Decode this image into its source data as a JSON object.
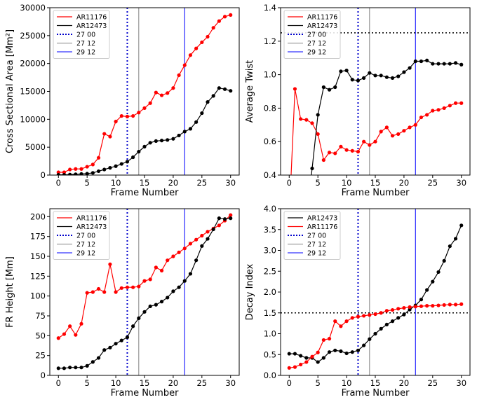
{
  "chart_data": [
    {
      "type": "line",
      "xlabel": "Frame Number",
      "ylabel": "Cross Sectional Area [Mm²]",
      "xlim": [
        -1.5,
        31.5
      ],
      "ylim": [
        0,
        30000
      ],
      "xticks": [
        0,
        5,
        10,
        15,
        20,
        25,
        30
      ],
      "yticks": [
        0,
        5000,
        10000,
        15000,
        20000,
        25000,
        30000
      ],
      "legend": "top-left",
      "vlines": [
        {
          "name": "27 00",
          "x": 12,
          "color": "#0000cc",
          "style": "dotted"
        },
        {
          "name": "27 12",
          "x": 14,
          "color": "#808080",
          "style": "solid"
        },
        {
          "name": "29 12",
          "x": 22,
          "color": "#0000ff",
          "style": "solid"
        }
      ],
      "hlines": [],
      "series": [
        {
          "name": "AR11176",
          "color": "#ff0000",
          "values": [
            500,
            500,
            1000,
            1100,
            1100,
            1500,
            1900,
            3100,
            7400,
            6900,
            9600,
            10600,
            10500,
            10600,
            11200,
            12000,
            12900,
            14800,
            14300,
            14700,
            15600,
            17900,
            19700,
            21500,
            22700,
            23800,
            24800,
            26400,
            27600,
            28400,
            28700
          ]
        },
        {
          "name": "AR12473",
          "color": "#000000",
          "values": [
            50,
            50,
            100,
            150,
            200,
            250,
            400,
            700,
            1000,
            1300,
            1600,
            2000,
            2400,
            3200,
            4200,
            5100,
            5800,
            6100,
            6200,
            6300,
            6500,
            7100,
            7800,
            8300,
            9500,
            11100,
            13100,
            14200,
            15600,
            15400,
            15100
          ]
        }
      ]
    },
    {
      "type": "line",
      "xlabel": "Frame Number",
      "ylabel": "Average Twist",
      "xlim": [
        -1.5,
        31.5
      ],
      "ylim": [
        0.4,
        1.4
      ],
      "xticks": [
        0,
        5,
        10,
        15,
        20,
        25,
        30
      ],
      "yticks": [
        0.4,
        0.6,
        0.8,
        1.0,
        1.2,
        1.4
      ],
      "legend": "top-left",
      "vlines": [
        {
          "name": "27 00",
          "x": 12,
          "color": "#0000cc",
          "style": "dotted"
        },
        {
          "name": "27 12",
          "x": 14,
          "color": "#808080",
          "style": "solid"
        },
        {
          "name": "29 12",
          "x": 22,
          "color": "#0000ff",
          "style": "solid"
        }
      ],
      "hlines": [
        {
          "y": 1.25,
          "color": "#000000",
          "style": "dotted"
        }
      ],
      "series": [
        {
          "name": "AR11176",
          "color": "#ff0000",
          "x": [
            0,
            1,
            2,
            3,
            4,
            5,
            6,
            7,
            8,
            9,
            10,
            11,
            12,
            13,
            14,
            15,
            16,
            17,
            18,
            19,
            20,
            21,
            22,
            23,
            24,
            25,
            26,
            27,
            28,
            29,
            30
          ],
          "values": [
            0.15,
            0.915,
            0.735,
            0.73,
            0.71,
            0.645,
            0.49,
            0.535,
            0.53,
            0.57,
            0.55,
            0.545,
            0.54,
            0.6,
            0.58,
            0.6,
            0.66,
            0.685,
            0.635,
            0.645,
            0.665,
            0.685,
            0.7,
            0.745,
            0.76,
            0.785,
            0.79,
            0.8,
            0.815,
            0.83,
            0.83
          ]
        },
        {
          "name": "AR12473",
          "color": "#000000",
          "x": [
            3,
            4,
            5,
            6,
            7,
            8,
            9,
            10,
            11,
            12,
            13,
            14,
            15,
            16,
            17,
            18,
            19,
            20,
            21,
            22,
            23,
            24,
            25,
            26,
            27,
            28,
            29,
            30
          ],
          "values": [
            0.15,
            0.44,
            0.76,
            0.925,
            0.91,
            0.925,
            1.02,
            1.025,
            0.97,
            0.965,
            0.98,
            1.01,
            0.995,
            0.995,
            0.985,
            0.98,
            0.99,
            1.015,
            1.04,
            1.08,
            1.08,
            1.085,
            1.065,
            1.065,
            1.065,
            1.065,
            1.07,
            1.06
          ]
        }
      ]
    },
    {
      "type": "line",
      "xlabel": "Frame Number",
      "ylabel": "FR Height [Mm]",
      "xlim": [
        -1.5,
        31.5
      ],
      "ylim": [
        0,
        210
      ],
      "xticks": [
        0,
        5,
        10,
        15,
        20,
        25,
        30
      ],
      "yticks": [
        0,
        25,
        50,
        75,
        100,
        125,
        150,
        175,
        200
      ],
      "legend": "top-left",
      "vlines": [
        {
          "name": "27 00",
          "x": 12,
          "color": "#0000cc",
          "style": "dotted"
        },
        {
          "name": "27 12",
          "x": 14,
          "color": "#808080",
          "style": "solid"
        },
        {
          "name": "29 12",
          "x": 22,
          "color": "#0000ff",
          "style": "solid"
        }
      ],
      "hlines": [],
      "series": [
        {
          "name": "AR11176",
          "color": "#ff0000",
          "values": [
            47,
            52,
            62,
            51,
            65,
            104,
            105,
            109,
            105,
            140,
            105,
            110,
            111,
            111,
            112,
            119,
            121,
            136,
            132,
            145,
            150,
            155,
            160,
            166,
            171,
            176,
            181,
            185,
            189,
            195,
            202
          ]
        },
        {
          "name": "AR12473",
          "color": "#000000",
          "values": [
            9,
            9,
            10,
            10,
            10,
            12,
            17,
            22,
            32,
            35,
            40,
            44,
            48,
            62,
            72,
            80,
            87,
            89,
            93,
            98,
            106,
            111,
            119,
            128,
            145,
            163,
            172,
            184,
            198,
            197,
            198
          ]
        }
      ]
    },
    {
      "type": "line",
      "xlabel": "Frame Number",
      "ylabel": "Decay Index",
      "xlim": [
        -1.5,
        31.5
      ],
      "ylim": [
        0,
        4
      ],
      "xticks": [
        0,
        5,
        10,
        15,
        20,
        25,
        30
      ],
      "yticks": [
        0.0,
        0.5,
        1.0,
        1.5,
        2.0,
        2.5,
        3.0,
        3.5,
        4.0
      ],
      "legend": "top-left",
      "vlines": [
        {
          "name": "27 00",
          "x": 12,
          "color": "#0000cc",
          "style": "dotted"
        },
        {
          "name": "27 12",
          "x": 14,
          "color": "#808080",
          "style": "solid"
        },
        {
          "name": "29 12",
          "x": 22,
          "color": "#0000ff",
          "style": "solid"
        }
      ],
      "hlines": [
        {
          "y": 1.5,
          "color": "#000000",
          "style": "dotted"
        }
      ],
      "series": [
        {
          "name": "AR12473",
          "color": "#000000",
          "values": [
            0.52,
            0.52,
            0.47,
            0.42,
            0.42,
            0.32,
            0.42,
            0.56,
            0.6,
            0.58,
            0.53,
            0.56,
            0.6,
            0.72,
            0.87,
            1.0,
            1.12,
            1.22,
            1.3,
            1.38,
            1.46,
            1.58,
            1.68,
            1.82,
            2.05,
            2.25,
            2.48,
            2.75,
            3.1,
            3.28,
            3.6
          ]
        },
        {
          "name": "AR11176",
          "color": "#ff0000",
          "values": [
            0.18,
            0.2,
            0.26,
            0.32,
            0.45,
            0.55,
            0.85,
            0.88,
            1.3,
            1.18,
            1.3,
            1.38,
            1.41,
            1.43,
            1.45,
            1.47,
            1.5,
            1.55,
            1.57,
            1.6,
            1.62,
            1.64,
            1.65,
            1.66,
            1.67,
            1.67,
            1.68,
            1.69,
            1.7,
            1.7,
            1.71
          ]
        }
      ]
    }
  ]
}
